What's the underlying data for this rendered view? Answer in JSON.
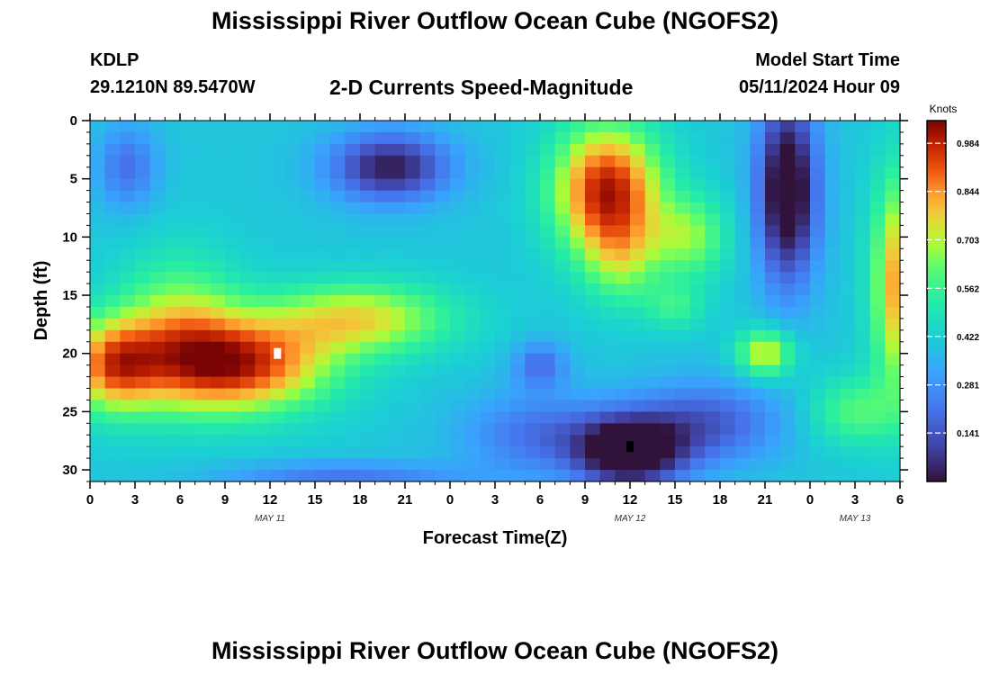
{
  "header": {
    "title": "Mississippi River Outflow Ocean Cube (NGOFS2)",
    "station": "KDLP",
    "coordinates": "29.1210N  89.5470W",
    "subtitle": "2-D Currents Speed-Magnitude",
    "model_start_label": "Model Start Time",
    "model_start_value": "05/11/2024 Hour 09"
  },
  "footer": {
    "title_repeat": "Mississippi River Outflow Ocean Cube (NGOFS2)"
  },
  "chart_data": {
    "type": "heatmap",
    "title": "2-D Currents Speed-Magnitude",
    "xlabel": "Forecast Time(Z)",
    "ylabel": "Depth (ft)",
    "x_unit": "hours from 05/11/2024 00Z",
    "x_range": [
      0,
      54
    ],
    "y_range": [
      0,
      31
    ],
    "y_inverted": true,
    "x_ticks": [
      {
        "value": 0,
        "label": "0"
      },
      {
        "value": 3,
        "label": "3"
      },
      {
        "value": 6,
        "label": "6"
      },
      {
        "value": 9,
        "label": "9"
      },
      {
        "value": 12,
        "label": "12"
      },
      {
        "value": 15,
        "label": "15"
      },
      {
        "value": 18,
        "label": "18"
      },
      {
        "value": 21,
        "label": "21"
      },
      {
        "value": 24,
        "label": "0"
      },
      {
        "value": 27,
        "label": "3"
      },
      {
        "value": 30,
        "label": "6"
      },
      {
        "value": 33,
        "label": "9"
      },
      {
        "value": 36,
        "label": "12"
      },
      {
        "value": 39,
        "label": "15"
      },
      {
        "value": 42,
        "label": "18"
      },
      {
        "value": 45,
        "label": "21"
      },
      {
        "value": 48,
        "label": "0"
      },
      {
        "value": 51,
        "label": "3"
      },
      {
        "value": 54,
        "label": "6"
      }
    ],
    "date_labels": [
      {
        "value": 12,
        "label": "MAY 11"
      },
      {
        "value": 36,
        "label": "MAY 12"
      },
      {
        "value": 51,
        "label": "MAY 13"
      }
    ],
    "y_ticks": [
      0,
      5,
      10,
      15,
      20,
      25,
      30
    ],
    "colorbar": {
      "title": "Knots",
      "range": [
        0,
        1.05
      ],
      "ticks": [
        0.984,
        0.844,
        0.703,
        0.562,
        0.422,
        0.281,
        0.141
      ],
      "colormap": "turbo"
    },
    "features": [
      {
        "x": 20,
        "y": 4,
        "sx": 4.0,
        "sy": 3.0,
        "value": -0.38
      },
      {
        "x": 2.5,
        "y": 4,
        "sx": 2.0,
        "sy": 3.5,
        "value": -0.2
      },
      {
        "x": 10,
        "y": 21,
        "sx": 6.0,
        "sy": 4.0,
        "value": 0.55
      },
      {
        "x": 1.5,
        "y": 21,
        "sx": 3.0,
        "sy": 4.0,
        "value": 0.45
      },
      {
        "x": 6,
        "y": 18,
        "sx": 4.0,
        "sy": 6.0,
        "value": 0.3
      },
      {
        "x": 18,
        "y": 17,
        "sx": 6.0,
        "sy": 3.0,
        "value": 0.35
      },
      {
        "x": 34.5,
        "y": 6,
        "sx": 3.5,
        "sy": 5.5,
        "value": 0.6
      },
      {
        "x": 35.5,
        "y": 12,
        "sx": 2.5,
        "sy": 4.0,
        "value": 0.2
      },
      {
        "x": 40,
        "y": 10,
        "sx": 2.5,
        "sy": 3.5,
        "value": 0.25
      },
      {
        "x": 46.5,
        "y": 6,
        "sx": 2.0,
        "sy": 8.0,
        "value": -0.5
      },
      {
        "x": 54,
        "y": 14,
        "sx": 1.8,
        "sy": 9.0,
        "value": 0.45
      },
      {
        "x": 51,
        "y": 25,
        "sx": 3.0,
        "sy": 3.0,
        "value": 0.2
      },
      {
        "x": 45,
        "y": 20,
        "sx": 1.8,
        "sy": 2.0,
        "value": 0.35
      },
      {
        "x": 36,
        "y": 28.5,
        "sx": 3.5,
        "sy": 3.0,
        "value": -0.5
      },
      {
        "x": 30,
        "y": 21,
        "sx": 1.8,
        "sy": 2.0,
        "value": -0.2
      },
      {
        "x": 30,
        "y": 27,
        "sx": 5.0,
        "sy": 3.5,
        "value": -0.2
      },
      {
        "x": 41,
        "y": 26,
        "sx": 5.0,
        "sy": 3.5,
        "value": -0.25
      },
      {
        "x": 17,
        "y": 30.5,
        "sx": 8.0,
        "sy": 1.2,
        "value": -0.18
      },
      {
        "x": 39,
        "y": 16,
        "sx": 2.0,
        "sy": 2.0,
        "value": 0.15
      }
    ],
    "background_value": 0.4,
    "markers": [
      {
        "x": 12.5,
        "y": 20,
        "color": "#ffffff"
      },
      {
        "x": 36,
        "y": 28,
        "color": "#000000"
      }
    ]
  }
}
